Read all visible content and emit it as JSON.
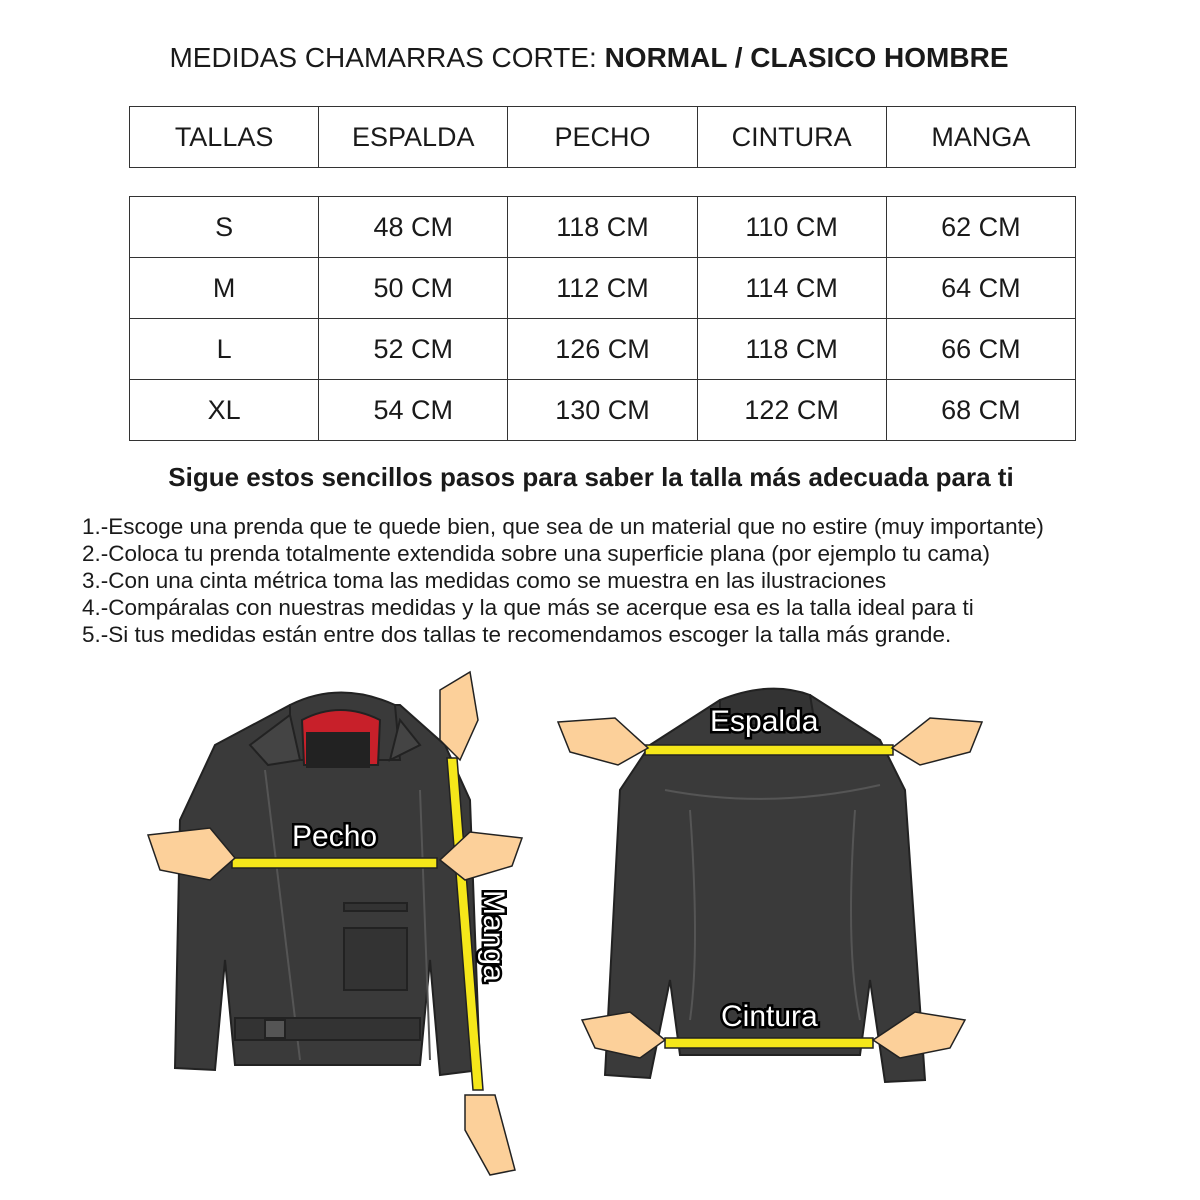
{
  "title": {
    "prefix": "MEDIDAS CHAMARRAS CORTE: ",
    "bold": "NORMAL / CLASICO HOMBRE"
  },
  "table": {
    "headers": [
      "TALLAS",
      "ESPALDA",
      "PECHO",
      "CINTURA",
      "MANGA"
    ],
    "rows": [
      [
        "S",
        "48 CM",
        "118 CM",
        "110 CM",
        "62 CM"
      ],
      [
        "M",
        "50 CM",
        "112 CM",
        "114 CM",
        "64 CM"
      ],
      [
        "L",
        "52 CM",
        "126 CM",
        "118 CM",
        "66 CM"
      ],
      [
        "XL",
        "54 CM",
        "130 CM",
        "122 CM",
        "68 CM"
      ]
    ]
  },
  "subtitle": "Sigue estos sencillos pasos para saber la talla más adecuada para ti",
  "steps": [
    "1.-Escoge una prenda que te quede bien, que sea de un material que no estire (muy importante)",
    "2.-Coloca tu prenda totalmente extendida sobre una superficie plana (por ejemplo tu cama)",
    "3.-Con una cinta métrica toma las medidas como se muestra en las ilustraciones",
    "4.-Compáralas con nuestras medidas y la que más se acerque esa es la talla ideal para ti",
    "5.-Si tus medidas están entre dos tallas te recomendamos escoger la talla más grande."
  ],
  "illustration": {
    "labels": {
      "pecho": "Pecho",
      "manga": "Manga",
      "espalda": "Espalda",
      "cintura": "Cintura"
    },
    "colors": {
      "jacket": "#3a3a3a",
      "lining": "#c8202a",
      "tape": "#f5e71a",
      "skin": "#fcd09a"
    }
  }
}
